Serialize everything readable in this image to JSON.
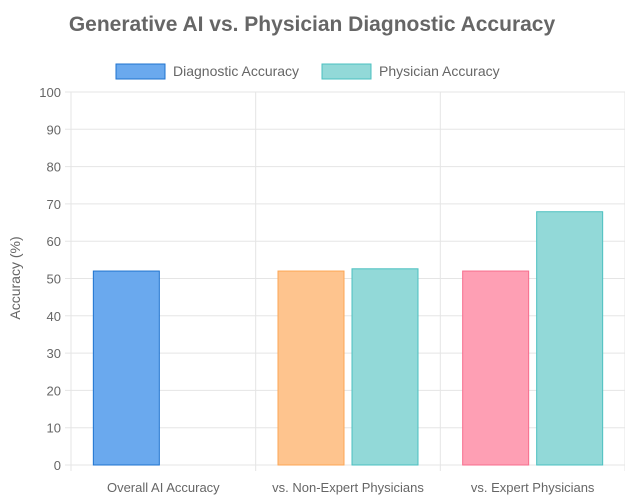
{
  "chart_data": {
    "type": "bar",
    "title": "Generative AI vs. Physician Diagnostic Accuracy",
    "xlabel": "",
    "ylabel": "Accuracy (%)",
    "ylim": [
      0,
      100
    ],
    "yticks": [
      0,
      10,
      20,
      30,
      40,
      50,
      60,
      70,
      80,
      90,
      100
    ],
    "grid": true,
    "legend_position": "top",
    "categories": [
      "Overall AI Accuracy",
      "vs. Non-Expert Physicians",
      "vs. Expert Physicians"
    ],
    "series": [
      {
        "name": "Diagnostic Accuracy",
        "values": [
          52,
          52,
          52
        ],
        "fill": [
          "#6aa9ee",
          "#fec48e",
          "#fe9fb4"
        ],
        "stroke": [
          "#1f73cf",
          "#fca654",
          "#f76d8c"
        ],
        "legend_fill": "#6aa9ee",
        "legend_stroke": "#1f73cf"
      },
      {
        "name": "Physician Accuracy",
        "values": [
          null,
          52.6,
          67.9
        ],
        "fill": [
          "#92d9d8",
          "#92d9d8",
          "#92d9d8"
        ],
        "stroke": [
          "#4bc0c0",
          "#4bc0c0",
          "#4bc0c0"
        ],
        "legend_fill": "#92d9d8",
        "legend_stroke": "#4bc0c0"
      }
    ]
  }
}
